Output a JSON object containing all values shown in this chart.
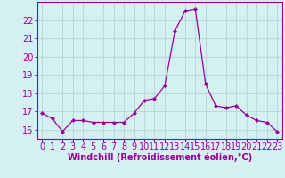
{
  "x": [
    0,
    1,
    2,
    3,
    4,
    5,
    6,
    7,
    8,
    9,
    10,
    11,
    12,
    13,
    14,
    15,
    16,
    17,
    18,
    19,
    20,
    21,
    22,
    23
  ],
  "y": [
    16.9,
    16.6,
    15.9,
    16.5,
    16.5,
    16.4,
    16.4,
    16.4,
    16.4,
    16.9,
    17.6,
    17.7,
    18.4,
    21.4,
    22.5,
    22.6,
    18.5,
    17.3,
    17.2,
    17.3,
    16.8,
    16.5,
    16.4,
    15.9
  ],
  "line_color": "#990099",
  "marker": "D",
  "marker_size": 2,
  "bg_color": "#d4f0f0",
  "grid_color": "#b0d8d8",
  "xlabel": "Windchill (Refroidissement éolien,°C)",
  "tick_color": "#990099",
  "ylim": [
    15.5,
    23.0
  ],
  "yticks": [
    16,
    17,
    18,
    19,
    20,
    21,
    22
  ],
  "xlim": [
    -0.5,
    23.5
  ],
  "xticks": [
    0,
    1,
    2,
    3,
    4,
    5,
    6,
    7,
    8,
    9,
    10,
    11,
    12,
    13,
    14,
    15,
    16,
    17,
    18,
    19,
    20,
    21,
    22,
    23
  ],
  "tick_fontsize": 7,
  "xlabel_fontsize": 7
}
